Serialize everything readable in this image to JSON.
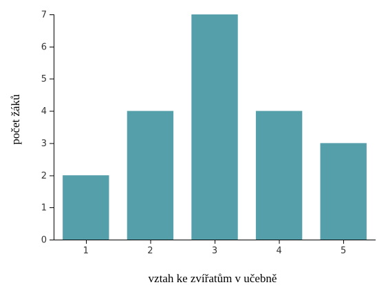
{
  "chart_data": {
    "type": "bar",
    "categories": [
      "1",
      "2",
      "3",
      "4",
      "5"
    ],
    "values": [
      2,
      4,
      7,
      4,
      3
    ],
    "title": "",
    "xlabel": "vztah ke zvířatům v učebně",
    "ylabel": "počet žáků",
    "ylim": [
      0,
      7
    ],
    "yticks": [
      0,
      1,
      2,
      3,
      4,
      5,
      6,
      7
    ],
    "grid": false,
    "bar_color": "#559fab"
  }
}
